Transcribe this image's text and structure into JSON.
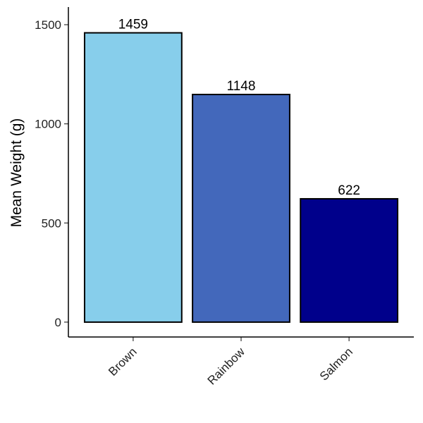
{
  "chart_data": {
    "type": "bar",
    "y_label": "Mean Weight (g)",
    "categories": [
      "Brown",
      "Rainbow",
      "Salmon"
    ],
    "values": [
      1459,
      1148,
      622
    ],
    "colors": [
      "#87ceeb",
      "#4368bb",
      "#00008b"
    ],
    "ylim": [
      -75,
      1589
    ],
    "yticks": [
      0,
      500,
      1000,
      1500
    ]
  }
}
